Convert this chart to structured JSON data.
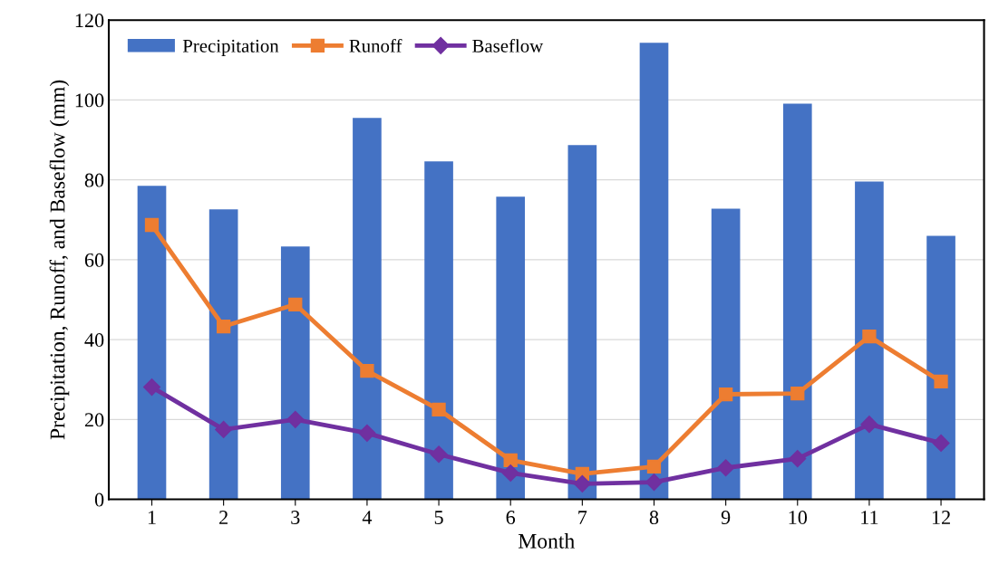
{
  "chart_data": {
    "type": "bar",
    "xlabel": "Month",
    "ylabel": "Precipitation, Runoff, and Baseflow (mm)",
    "categories": [
      "1",
      "2",
      "3",
      "4",
      "5",
      "6",
      "7",
      "8",
      "9",
      "10",
      "11",
      "12"
    ],
    "series": [
      {
        "name": "Precipitation",
        "color": "#4472c4",
        "values": [
          78.5,
          72.6,
          63.3,
          95.5,
          84.6,
          75.8,
          88.7,
          114.3,
          72.8,
          99.1,
          79.6,
          66.0
        ]
      },
      {
        "name": "Runoff",
        "type": "line",
        "color": "#ed7d31",
        "marker": "square",
        "values": [
          68.7,
          43.3,
          48.8,
          32.2,
          22.5,
          9.8,
          6.4,
          8.2,
          26.3,
          26.5,
          40.8,
          29.5
        ]
      },
      {
        "name": "Baseflow",
        "type": "line",
        "color": "#7030a0",
        "marker": "diamond",
        "values": [
          28.1,
          17.5,
          20.0,
          16.6,
          11.3,
          6.6,
          3.9,
          4.3,
          7.9,
          10.2,
          18.8,
          14.1
        ]
      }
    ],
    "ylim": [
      0,
      120
    ],
    "yticks": [
      0,
      20,
      40,
      60,
      80,
      100,
      120
    ],
    "grid": "y",
    "legend": "top left",
    "line_style": "solid"
  }
}
